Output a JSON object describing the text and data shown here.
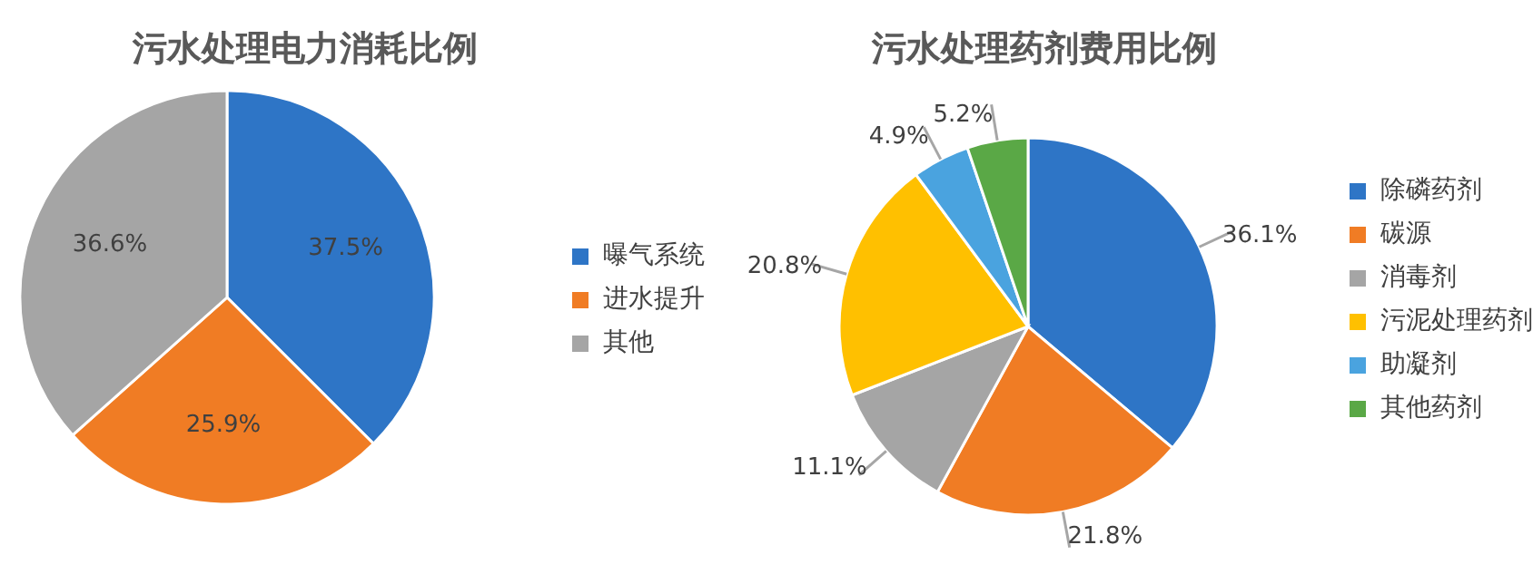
{
  "chart_data": [
    {
      "type": "pie",
      "title": "污水处理电力消耗比例",
      "categories": [
        "曝气系统",
        "进水提升",
        "其他"
      ],
      "values": [
        37.5,
        25.9,
        36.6
      ],
      "colors": [
        "#2e75c6",
        "#f07c24",
        "#a5a5a5"
      ],
      "value_labels": [
        "37.5%",
        "25.9%",
        "36.6%"
      ],
      "legend": "right"
    },
    {
      "type": "pie",
      "title": "污水处理药剂费用比例",
      "categories": [
        "除磷药剂",
        "碳源",
        "消毒剂",
        "污泥处理药剂",
        "助凝剂",
        "其他药剂"
      ],
      "values": [
        36.1,
        21.8,
        11.1,
        20.8,
        4.9,
        5.2
      ],
      "colors": [
        "#2e75c6",
        "#f07c24",
        "#a5a5a5",
        "#ffc000",
        "#4aa3df",
        "#5aa846"
      ],
      "value_labels": [
        "36.1%",
        "21.8%",
        "11.1%",
        "20.8%",
        "4.9%",
        "5.2%"
      ],
      "legend": "right"
    }
  ]
}
